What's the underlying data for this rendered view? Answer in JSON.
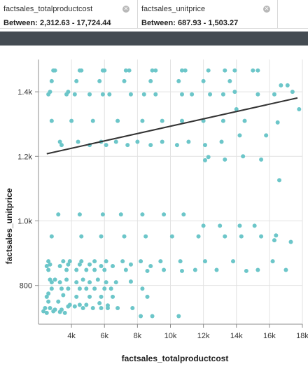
{
  "filters": [
    {
      "field": "factsales_totalproductcost",
      "value": "Between: 2,312.63 - 17,724.44"
    },
    {
      "field": "factsales_unitprice",
      "value": "Between: 687.93 - 1,503.27"
    }
  ],
  "icons": {
    "close": "close-circle-icon"
  },
  "colors": {
    "point": "#6cc6c9",
    "trend": "#333333",
    "band": "#444b52",
    "grid": "#e2e2e2",
    "axis": "#8c8c8c"
  },
  "chart_data": {
    "type": "scatter",
    "xlabel": "factsales_totalproductcost",
    "ylabel": "factsales_unitprice",
    "xlim": [
      2000,
      18000
    ],
    "ylim": [
      680,
      1500
    ],
    "x_ticks": [
      4000,
      6000,
      8000,
      10000,
      12000,
      14000,
      16000,
      18000
    ],
    "x_tick_labels": [
      "4k",
      "6k",
      "8k",
      "10k",
      "12k",
      "14k",
      "16k",
      "18k"
    ],
    "y_ticks": [
      800,
      1000,
      1200,
      1400
    ],
    "y_tick_labels": [
      "800",
      "1.0k",
      "1.2k",
      "1.4k"
    ],
    "grid": true,
    "trendline": [
      [
        2500,
        1208
      ],
      [
        17700,
        1381
      ]
    ],
    "points": [
      [
        2900,
        1466
      ],
      [
        3000,
        1466
      ],
      [
        4500,
        1466
      ],
      [
        4600,
        1466
      ],
      [
        5900,
        1466
      ],
      [
        6000,
        1466
      ],
      [
        7300,
        1466
      ],
      [
        7500,
        1466
      ],
      [
        8900,
        1466
      ],
      [
        9100,
        1466
      ],
      [
        10700,
        1466
      ],
      [
        10900,
        1466
      ],
      [
        12300,
        1466
      ],
      [
        13300,
        1466
      ],
      [
        13900,
        1466
      ],
      [
        15000,
        1466
      ],
      [
        15300,
        1466
      ],
      [
        16700,
        1420
      ],
      [
        17100,
        1420
      ],
      [
        2800,
        1433
      ],
      [
        4300,
        1433
      ],
      [
        5700,
        1433
      ],
      [
        7200,
        1433
      ],
      [
        8800,
        1433
      ],
      [
        10500,
        1433
      ],
      [
        12000,
        1433
      ],
      [
        13600,
        1433
      ],
      [
        2600,
        1392
      ],
      [
        2700,
        1400
      ],
      [
        3700,
        1392
      ],
      [
        3800,
        1400
      ],
      [
        4200,
        1392
      ],
      [
        5100,
        1392
      ],
      [
        5900,
        1392
      ],
      [
        6300,
        1392
      ],
      [
        7600,
        1392
      ],
      [
        8400,
        1392
      ],
      [
        9100,
        1392
      ],
      [
        10700,
        1392
      ],
      [
        11300,
        1392
      ],
      [
        12400,
        1392
      ],
      [
        13200,
        1392
      ],
      [
        13900,
        1400
      ],
      [
        15300,
        1392
      ],
      [
        16300,
        1392
      ],
      [
        17400,
        1400
      ],
      [
        17800,
        1346
      ],
      [
        14000,
        1346
      ],
      [
        2800,
        1310
      ],
      [
        4000,
        1310
      ],
      [
        5300,
        1310
      ],
      [
        6800,
        1310
      ],
      [
        8300,
        1310
      ],
      [
        9500,
        1310
      ],
      [
        10700,
        1310
      ],
      [
        12000,
        1310
      ],
      [
        13200,
        1310
      ],
      [
        14500,
        1310
      ],
      [
        3300,
        1245
      ],
      [
        3400,
        1235
      ],
      [
        4400,
        1245
      ],
      [
        5100,
        1235
      ],
      [
        5800,
        1245
      ],
      [
        6100,
        1235
      ],
      [
        6700,
        1245
      ],
      [
        7400,
        1235
      ],
      [
        8000,
        1245
      ],
      [
        8800,
        1235
      ],
      [
        9500,
        1245
      ],
      [
        10400,
        1235
      ],
      [
        11100,
        1245
      ],
      [
        12100,
        1235
      ],
      [
        13100,
        1245
      ],
      [
        14200,
        1265
      ],
      [
        15800,
        1265
      ],
      [
        16500,
        1305
      ],
      [
        12100,
        1188
      ],
      [
        12300,
        1198
      ],
      [
        13300,
        1190
      ],
      [
        14400,
        1200
      ],
      [
        15500,
        1190
      ],
      [
        16600,
        1126
      ],
      [
        3200,
        1020
      ],
      [
        4500,
        1020
      ],
      [
        5900,
        1020
      ],
      [
        7000,
        1020
      ],
      [
        8300,
        1020
      ],
      [
        9600,
        1020
      ],
      [
        10800,
        1020
      ],
      [
        12000,
        985
      ],
      [
        13000,
        985
      ],
      [
        14200,
        985
      ],
      [
        15100,
        985
      ],
      [
        16400,
        955
      ],
      [
        2800,
        952
      ],
      [
        4600,
        952
      ],
      [
        5800,
        952
      ],
      [
        7200,
        952
      ],
      [
        8500,
        952
      ],
      [
        10100,
        952
      ],
      [
        11700,
        952
      ],
      [
        13300,
        952
      ],
      [
        14300,
        952
      ],
      [
        15500,
        952
      ],
      [
        16300,
        940
      ],
      [
        17300,
        935
      ],
      [
        2600,
        875
      ],
      [
        2700,
        865
      ],
      [
        3500,
        875
      ],
      [
        3900,
        875
      ],
      [
        4600,
        875
      ],
      [
        5400,
        875
      ],
      [
        6100,
        875
      ],
      [
        7100,
        875
      ],
      [
        8200,
        875
      ],
      [
        9400,
        875
      ],
      [
        10600,
        875
      ],
      [
        12100,
        875
      ],
      [
        13800,
        875
      ],
      [
        16200,
        875
      ],
      [
        2500,
        860
      ],
      [
        3300,
        860
      ],
      [
        3800,
        865
      ],
      [
        4500,
        865
      ],
      [
        5100,
        865
      ],
      [
        5800,
        860
      ],
      [
        6500,
        860
      ],
      [
        7600,
        865
      ],
      [
        8800,
        860
      ],
      [
        2600,
        848
      ],
      [
        3700,
        848
      ],
      [
        4300,
        848
      ],
      [
        4900,
        848
      ],
      [
        5400,
        848
      ],
      [
        6000,
        848
      ],
      [
        7300,
        848
      ],
      [
        8600,
        845
      ],
      [
        9600,
        848
      ],
      [
        10700,
        845
      ],
      [
        11500,
        848
      ],
      [
        12800,
        848
      ],
      [
        14600,
        845
      ],
      [
        15300,
        848
      ],
      [
        17000,
        848
      ],
      [
        2700,
        818
      ],
      [
        2800,
        810
      ],
      [
        3000,
        818
      ],
      [
        3300,
        810
      ],
      [
        3700,
        818
      ],
      [
        4300,
        810
      ],
      [
        4700,
        818
      ],
      [
        5100,
        810
      ],
      [
        5600,
        818
      ],
      [
        6100,
        810
      ],
      [
        6700,
        810
      ],
      [
        7600,
        812
      ],
      [
        2800,
        790
      ],
      [
        3400,
        790
      ],
      [
        3800,
        790
      ],
      [
        4500,
        790
      ],
      [
        4900,
        790
      ],
      [
        5400,
        790
      ],
      [
        6000,
        790
      ],
      [
        6400,
        790
      ],
      [
        8300,
        790
      ],
      [
        2500,
        765
      ],
      [
        2600,
        775
      ],
      [
        3500,
        770
      ],
      [
        4300,
        765
      ],
      [
        5100,
        765
      ],
      [
        5800,
        765
      ],
      [
        6500,
        765
      ],
      [
        8600,
        765
      ],
      [
        2600,
        750
      ],
      [
        3200,
        750
      ],
      [
        3900,
        740
      ],
      [
        4500,
        740
      ],
      [
        4900,
        740
      ],
      [
        5700,
        745
      ],
      [
        6200,
        738
      ],
      [
        2400,
        730
      ],
      [
        2700,
        730
      ],
      [
        3000,
        725
      ],
      [
        3400,
        725
      ],
      [
        3800,
        735
      ],
      [
        4200,
        735
      ],
      [
        4700,
        730
      ],
      [
        5300,
        730
      ],
      [
        5800,
        730
      ],
      [
        6200,
        730
      ],
      [
        6800,
        730
      ],
      [
        7700,
        730
      ],
      [
        2300,
        720
      ],
      [
        2500,
        715
      ],
      [
        2900,
        720
      ],
      [
        3300,
        718
      ],
      [
        3600,
        715
      ],
      [
        8200,
        705
      ],
      [
        8900,
        705
      ],
      [
        10500,
        705
      ]
    ]
  }
}
